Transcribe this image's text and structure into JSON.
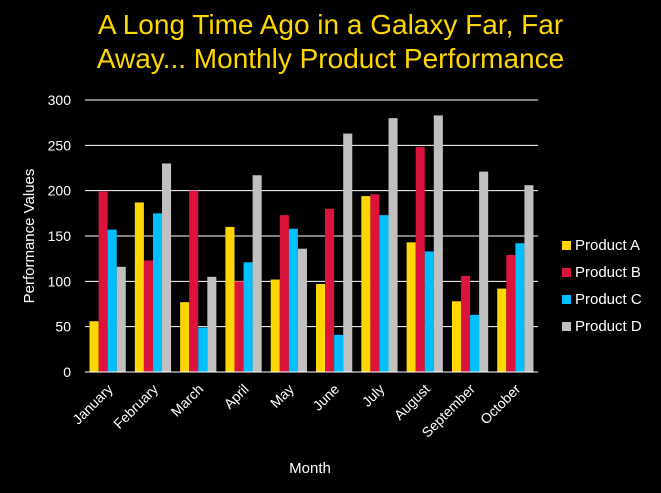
{
  "chart_data": {
    "type": "bar",
    "title_lines": [
      "A Long Time Ago in a Galaxy Far, Far",
      "Away... Monthly Product Performance"
    ],
    "xlabel": "Month",
    "ylabel": "Performance Values",
    "ylim": [
      0,
      300
    ],
    "yticks": [
      0,
      50,
      100,
      150,
      200,
      250,
      300
    ],
    "grid": true,
    "legend_position": "right",
    "categories": [
      "January",
      "February",
      "March",
      "April",
      "May",
      "June",
      "July",
      "August",
      "September",
      "October"
    ],
    "series": [
      {
        "name": "Product A",
        "color": "#FFD700",
        "values": [
          56,
          187,
          77,
          160,
          102,
          97,
          194,
          143,
          78,
          92
        ]
      },
      {
        "name": "Product B",
        "color": "#DC143C",
        "values": [
          199,
          123,
          200,
          100,
          173,
          180,
          196,
          248,
          106,
          129
        ]
      },
      {
        "name": "Product C",
        "color": "#00BFFF",
        "values": [
          157,
          175,
          49,
          121,
          158,
          41,
          173,
          133,
          63,
          142
        ]
      },
      {
        "name": "Product D",
        "color": "#C0C0C0",
        "values": [
          116,
          230,
          105,
          217,
          136,
          263,
          280,
          283,
          221,
          206
        ]
      }
    ]
  }
}
